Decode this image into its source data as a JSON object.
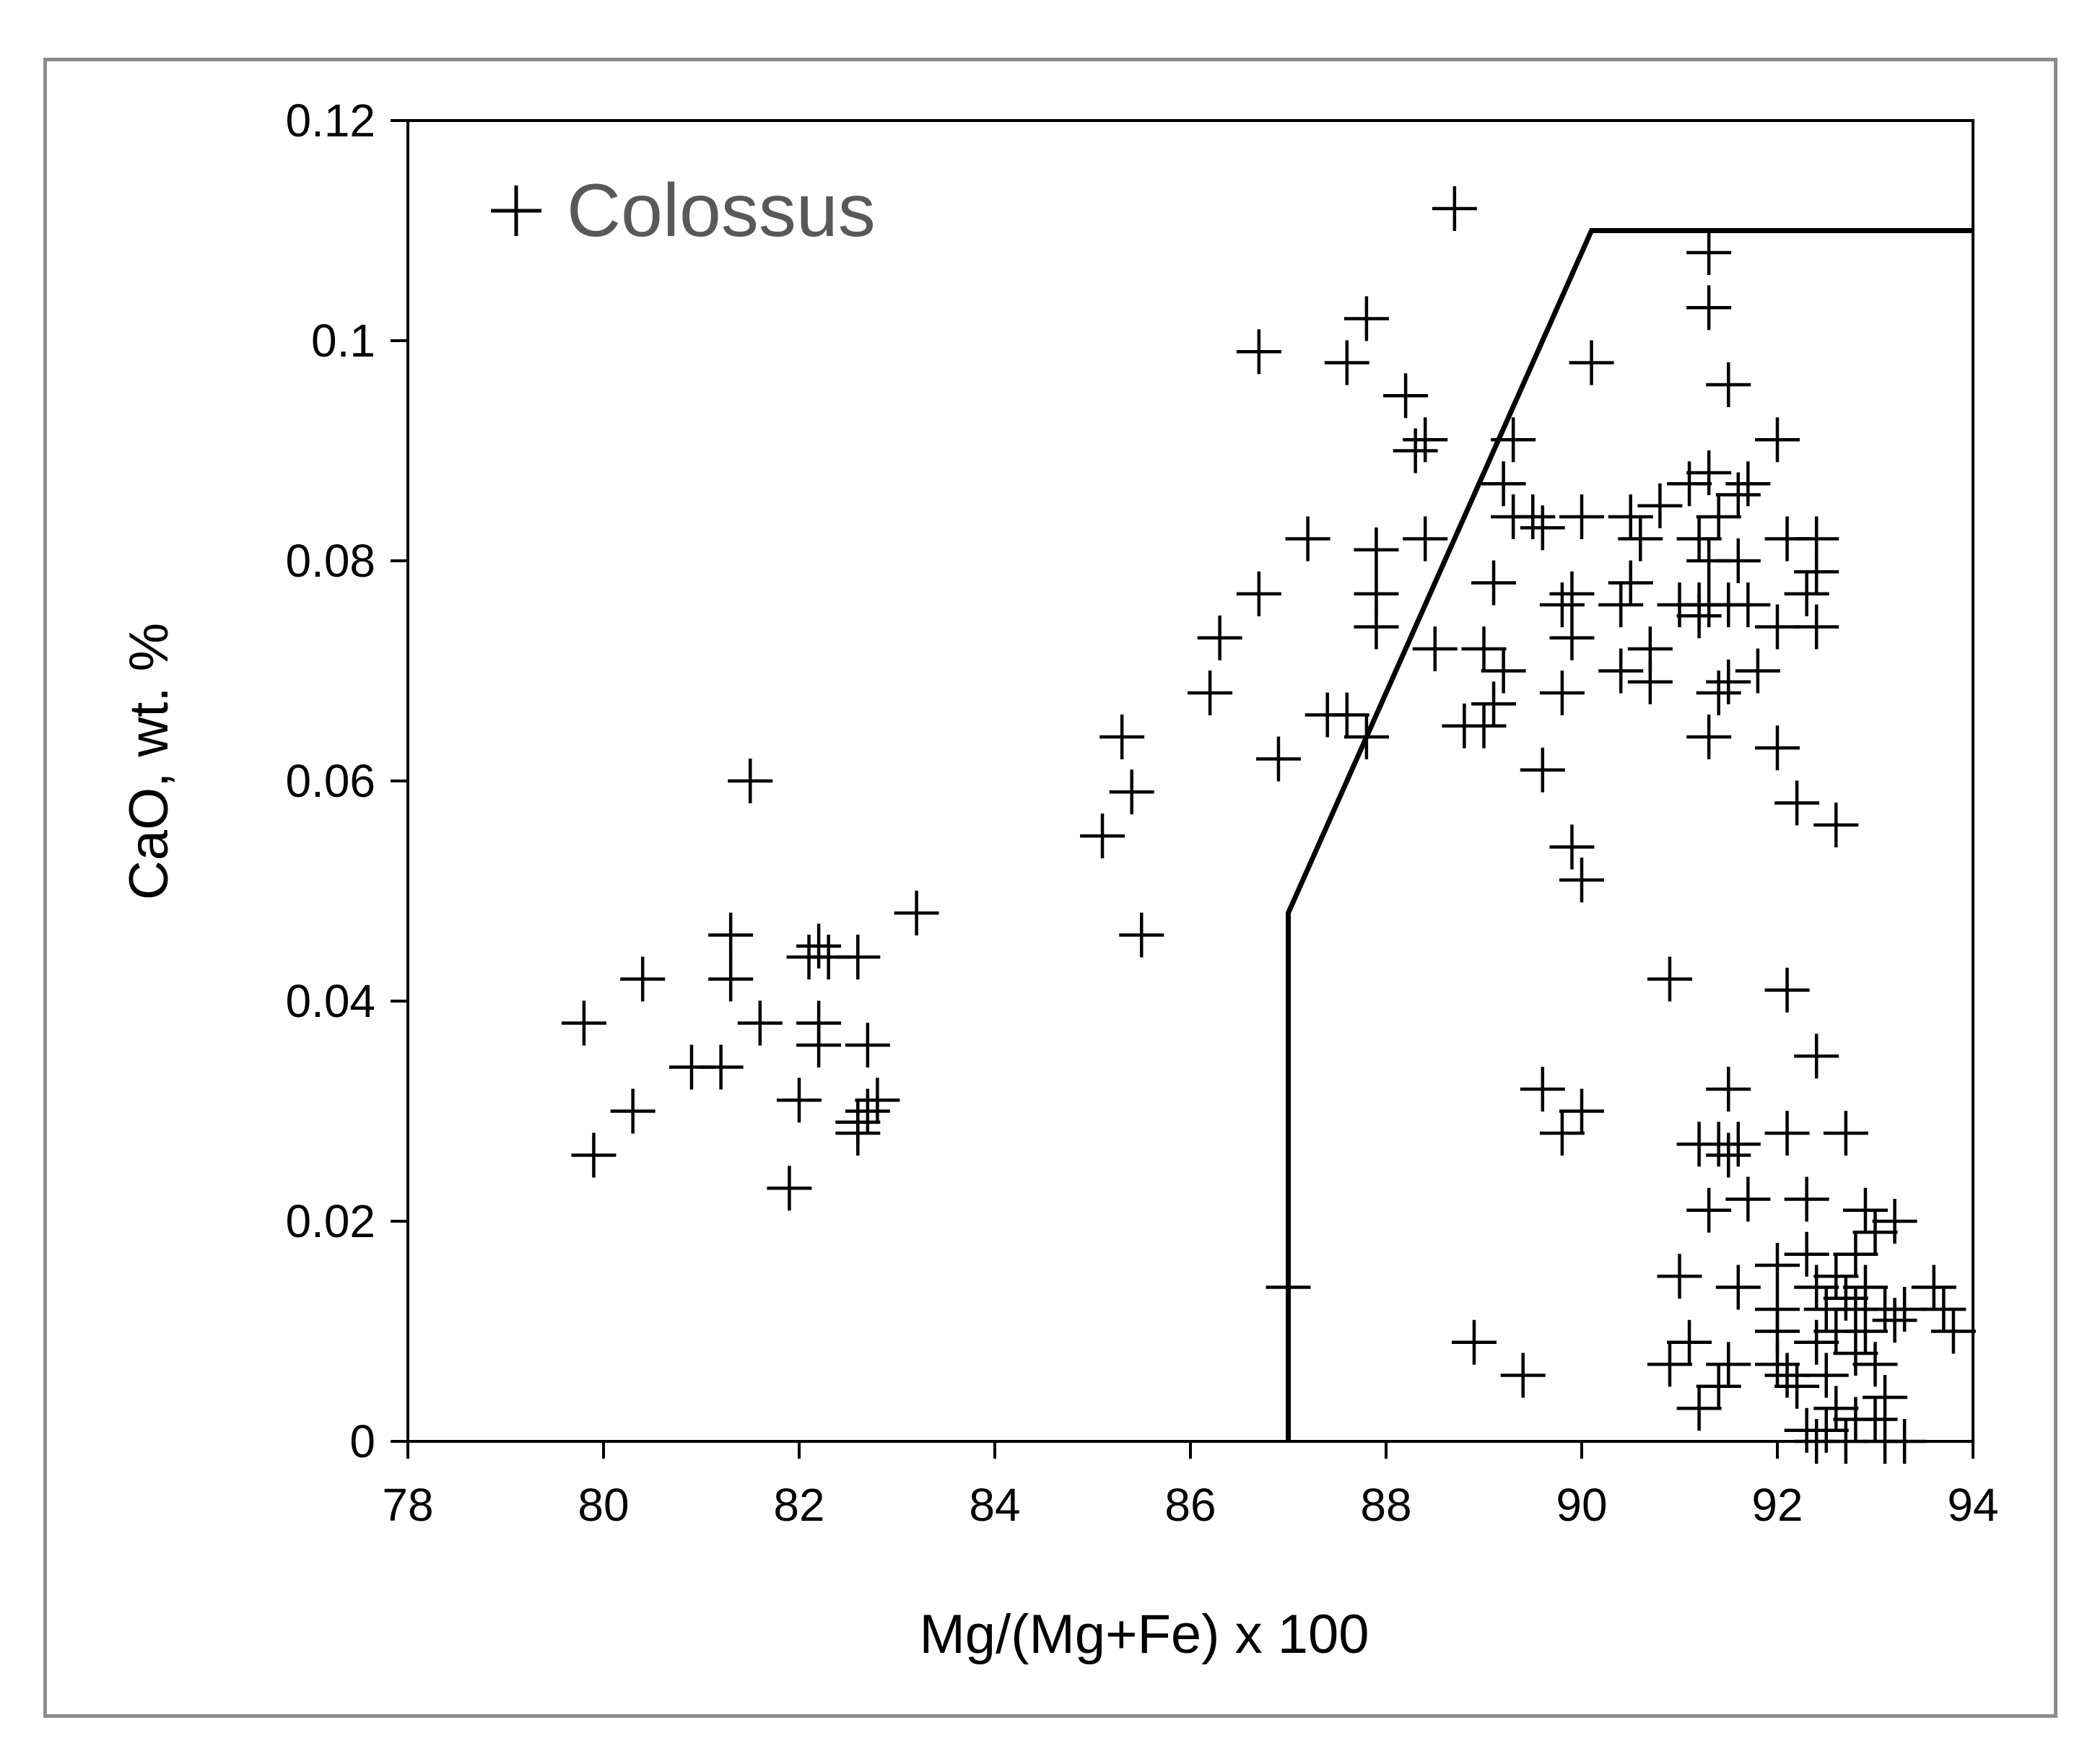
{
  "chart_data": {
    "type": "scatter",
    "title": "",
    "xlabel": "Mg/(Mg+Fe) x 100",
    "ylabel": "CaO, wt. %",
    "xlim": [
      78,
      94
    ],
    "ylim": [
      0,
      0.12
    ],
    "x_ticks": [
      "78",
      "80",
      "82",
      "84",
      "86",
      "88",
      "90",
      "92",
      "94"
    ],
    "y_ticks": [
      "0",
      "0.02",
      "0.04",
      "0.06",
      "0.08",
      "0.1",
      "0.12"
    ],
    "grid": false,
    "legend": {
      "position": "top-left",
      "entries": [
        {
          "label": "Colossus",
          "marker": "plus"
        }
      ]
    },
    "marker_color": "#000000",
    "boundary_line": {
      "label": "",
      "color": "#000000",
      "points": [
        [
          87.0,
          0.0
        ],
        [
          87.0,
          0.048
        ],
        [
          90.1,
          0.11
        ],
        [
          94.0,
          0.11
        ]
      ]
    },
    "series": [
      {
        "name": "Colossus",
        "points": [
          [
            79.8,
            0.038
          ],
          [
            79.9,
            0.026
          ],
          [
            80.3,
            0.03
          ],
          [
            80.4,
            0.042
          ],
          [
            80.9,
            0.034
          ],
          [
            81.2,
            0.034
          ],
          [
            81.3,
            0.046
          ],
          [
            81.3,
            0.042
          ],
          [
            81.5,
            0.06
          ],
          [
            81.6,
            0.038
          ],
          [
            81.9,
            0.023
          ],
          [
            82.0,
            0.031
          ],
          [
            82.1,
            0.044
          ],
          [
            82.2,
            0.045
          ],
          [
            82.2,
            0.038
          ],
          [
            82.2,
            0.036
          ],
          [
            82.3,
            0.044
          ],
          [
            82.6,
            0.044
          ],
          [
            82.6,
            0.029
          ],
          [
            82.6,
            0.028
          ],
          [
            82.7,
            0.036
          ],
          [
            82.7,
            0.03
          ],
          [
            82.8,
            0.031
          ],
          [
            83.2,
            0.048
          ],
          [
            85.1,
            0.055
          ],
          [
            85.3,
            0.064
          ],
          [
            85.4,
            0.059
          ],
          [
            85.5,
            0.046
          ],
          [
            86.2,
            0.068
          ],
          [
            86.3,
            0.073
          ],
          [
            86.7,
            0.099
          ],
          [
            86.7,
            0.077
          ],
          [
            86.9,
            0.062
          ],
          [
            87.2,
            0.082
          ],
          [
            87.4,
            0.066
          ],
          [
            87.6,
            0.098
          ],
          [
            87.6,
            0.066
          ],
          [
            87.8,
            0.064
          ],
          [
            87.8,
            0.102
          ],
          [
            87.9,
            0.081
          ],
          [
            87.9,
            0.077
          ],
          [
            87.9,
            0.074
          ],
          [
            88.2,
            0.095
          ],
          [
            88.3,
            0.09
          ],
          [
            88.4,
            0.091
          ],
          [
            88.4,
            0.082
          ],
          [
            88.5,
            0.072
          ],
          [
            88.7,
            0.112
          ],
          [
            88.8,
            0.065
          ],
          [
            89.0,
            0.065
          ],
          [
            89.0,
            0.072
          ],
          [
            89.1,
            0.078
          ],
          [
            89.1,
            0.067
          ],
          [
            89.2,
            0.07
          ],
          [
            89.2,
            0.087
          ],
          [
            89.3,
            0.084
          ],
          [
            89.3,
            0.091
          ],
          [
            89.5,
            0.084
          ],
          [
            89.6,
            0.083
          ],
          [
            89.6,
            0.061
          ],
          [
            89.6,
            0.032
          ],
          [
            89.8,
            0.028
          ],
          [
            89.8,
            0.068
          ],
          [
            89.8,
            0.076
          ],
          [
            89.9,
            0.073
          ],
          [
            89.9,
            0.054
          ],
          [
            89.9,
            0.077
          ],
          [
            90.0,
            0.084
          ],
          [
            90.0,
            0.03
          ],
          [
            90.0,
            0.051
          ],
          [
            90.1,
            0.098
          ],
          [
            90.4,
            0.076
          ],
          [
            90.4,
            0.07
          ],
          [
            90.5,
            0.084
          ],
          [
            90.5,
            0.078
          ],
          [
            90.6,
            0.082
          ],
          [
            90.7,
            0.072
          ],
          [
            90.7,
            0.069
          ],
          [
            90.8,
            0.085
          ],
          [
            90.9,
            0.042
          ],
          [
            91.0,
            0.076
          ],
          [
            91.1,
            0.087
          ],
          [
            91.2,
            0.076
          ],
          [
            91.2,
            0.082
          ],
          [
            91.2,
            0.075
          ],
          [
            91.3,
            0.108
          ],
          [
            91.3,
            0.103
          ],
          [
            91.3,
            0.088
          ],
          [
            91.3,
            0.08
          ],
          [
            91.3,
            0.064
          ],
          [
            91.3,
            0.076
          ],
          [
            91.4,
            0.068
          ],
          [
            91.4,
            0.084
          ],
          [
            91.5,
            0.096
          ],
          [
            91.5,
            0.076
          ],
          [
            91.5,
            0.069
          ],
          [
            91.6,
            0.08
          ],
          [
            91.6,
            0.086
          ],
          [
            91.7,
            0.076
          ],
          [
            91.7,
            0.087
          ],
          [
            91.8,
            0.07
          ],
          [
            92.0,
            0.091
          ],
          [
            92.0,
            0.074
          ],
          [
            92.0,
            0.063
          ],
          [
            92.1,
            0.082
          ],
          [
            92.2,
            0.058
          ],
          [
            92.3,
            0.077
          ],
          [
            92.4,
            0.082
          ],
          [
            92.4,
            0.074
          ],
          [
            92.4,
            0.079
          ],
          [
            92.6,
            0.056
          ],
          [
            90.9,
            0.007
          ],
          [
            91.0,
            0.015
          ],
          [
            91.1,
            0.009
          ],
          [
            91.2,
            0.003
          ],
          [
            91.2,
            0.027
          ],
          [
            91.3,
            0.021
          ],
          [
            91.4,
            0.027
          ],
          [
            91.4,
            0.005
          ],
          [
            91.5,
            0.032
          ],
          [
            91.5,
            0.007
          ],
          [
            91.5,
            0.026
          ],
          [
            91.6,
            0.014
          ],
          [
            91.6,
            0.027
          ],
          [
            91.7,
            0.022
          ],
          [
            92.0,
            0.016
          ],
          [
            92.0,
            0.012
          ],
          [
            92.0,
            0.01
          ],
          [
            92.0,
            0.007
          ],
          [
            92.1,
            0.028
          ],
          [
            92.1,
            0.006
          ],
          [
            92.1,
            0.041
          ],
          [
            92.2,
            0.005
          ],
          [
            92.3,
            0.022
          ],
          [
            92.3,
            0.017
          ],
          [
            92.3,
            0.001
          ],
          [
            92.4,
            0.035
          ],
          [
            92.4,
            0.014
          ],
          [
            92.4,
            0.009
          ],
          [
            92.4,
            0.0
          ],
          [
            92.5,
            0.006
          ],
          [
            92.5,
            0.012
          ],
          [
            92.5,
            0.001
          ],
          [
            92.6,
            0.015
          ],
          [
            92.6,
            0.01
          ],
          [
            92.6,
            0.003
          ],
          [
            92.7,
            0.028
          ],
          [
            92.7,
            0.013
          ],
          [
            92.7,
            0.0
          ],
          [
            92.8,
            0.017
          ],
          [
            92.8,
            0.012
          ],
          [
            92.8,
            0.008
          ],
          [
            92.8,
            0.002
          ],
          [
            92.9,
            0.021
          ],
          [
            92.9,
            0.014
          ],
          [
            92.9,
            0.01
          ],
          [
            93.0,
            0.007
          ],
          [
            93.0,
            0.002
          ],
          [
            93.0,
            0.019
          ],
          [
            93.1,
            0.012
          ],
          [
            93.1,
            0.004
          ],
          [
            93.1,
            0.0
          ],
          [
            93.2,
            0.02
          ],
          [
            93.2,
            0.011
          ],
          [
            93.3,
            0.012
          ],
          [
            93.3,
            0.0
          ],
          [
            93.6,
            0.014
          ],
          [
            93.7,
            0.012
          ],
          [
            93.8,
            0.01
          ],
          [
            89.4,
            0.006
          ],
          [
            88.9,
            0.009
          ],
          [
            87.0,
            0.014
          ]
        ]
      }
    ]
  }
}
